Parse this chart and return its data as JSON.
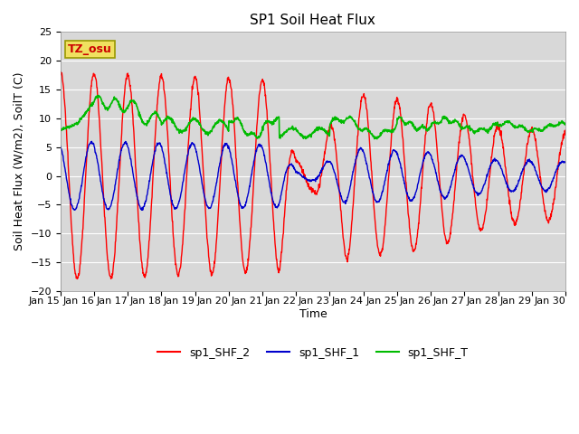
{
  "title": "SP1 Soil Heat Flux",
  "xlabel": "Time",
  "ylabel": "Soil Heat Flux (W/m2), SoilT (C)",
  "ylim": [
    -20,
    25
  ],
  "yticks": [
    -20,
    -15,
    -10,
    -5,
    0,
    5,
    10,
    15,
    20,
    25
  ],
  "tz_label": "TZ_osu",
  "legend_labels": [
    "sp1_SHF_2",
    "sp1_SHF_1",
    "sp1_SHF_T"
  ],
  "line_colors": [
    "#ff0000",
    "#0000cd",
    "#00bb00"
  ],
  "fig_bg_color": "#ffffff",
  "plot_bg_color": "#d8d8d8",
  "n_points": 1500,
  "days": 15,
  "title_fontsize": 11,
  "label_fontsize": 9,
  "tick_fontsize": 8
}
